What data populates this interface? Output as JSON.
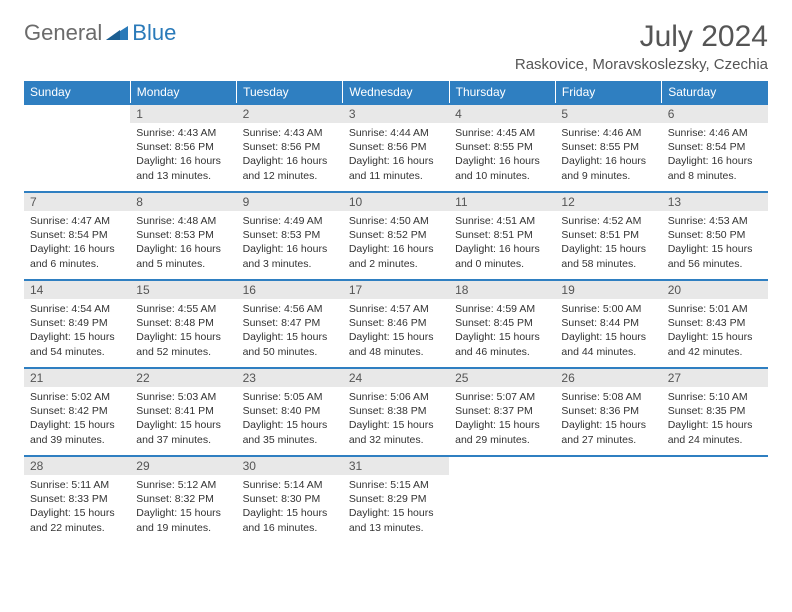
{
  "logo": {
    "word1": "General",
    "word2": "Blue"
  },
  "title": "July 2024",
  "location": "Raskovice, Moravskoslezsky, Czechia",
  "colors": {
    "header_bg": "#2f7fc1",
    "header_text": "#ffffff",
    "daynum_bg": "#e8e8e8",
    "rule": "#2f7fc1",
    "logo_gray": "#6b6b6b",
    "logo_blue": "#2a7ab9",
    "text": "#333333"
  },
  "typography": {
    "title_fontsize": 30,
    "location_fontsize": 15,
    "dayhead_fontsize": 12,
    "cell_fontsize": 10.5
  },
  "day_headers": [
    "Sunday",
    "Monday",
    "Tuesday",
    "Wednesday",
    "Thursday",
    "Friday",
    "Saturday"
  ],
  "weeks": [
    [
      {
        "n": "",
        "sunrise": "",
        "sunset": "",
        "daylight": ""
      },
      {
        "n": "1",
        "sunrise": "Sunrise: 4:43 AM",
        "sunset": "Sunset: 8:56 PM",
        "daylight": "Daylight: 16 hours and 13 minutes."
      },
      {
        "n": "2",
        "sunrise": "Sunrise: 4:43 AM",
        "sunset": "Sunset: 8:56 PM",
        "daylight": "Daylight: 16 hours and 12 minutes."
      },
      {
        "n": "3",
        "sunrise": "Sunrise: 4:44 AM",
        "sunset": "Sunset: 8:56 PM",
        "daylight": "Daylight: 16 hours and 11 minutes."
      },
      {
        "n": "4",
        "sunrise": "Sunrise: 4:45 AM",
        "sunset": "Sunset: 8:55 PM",
        "daylight": "Daylight: 16 hours and 10 minutes."
      },
      {
        "n": "5",
        "sunrise": "Sunrise: 4:46 AM",
        "sunset": "Sunset: 8:55 PM",
        "daylight": "Daylight: 16 hours and 9 minutes."
      },
      {
        "n": "6",
        "sunrise": "Sunrise: 4:46 AM",
        "sunset": "Sunset: 8:54 PM",
        "daylight": "Daylight: 16 hours and 8 minutes."
      }
    ],
    [
      {
        "n": "7",
        "sunrise": "Sunrise: 4:47 AM",
        "sunset": "Sunset: 8:54 PM",
        "daylight": "Daylight: 16 hours and 6 minutes."
      },
      {
        "n": "8",
        "sunrise": "Sunrise: 4:48 AM",
        "sunset": "Sunset: 8:53 PM",
        "daylight": "Daylight: 16 hours and 5 minutes."
      },
      {
        "n": "9",
        "sunrise": "Sunrise: 4:49 AM",
        "sunset": "Sunset: 8:53 PM",
        "daylight": "Daylight: 16 hours and 3 minutes."
      },
      {
        "n": "10",
        "sunrise": "Sunrise: 4:50 AM",
        "sunset": "Sunset: 8:52 PM",
        "daylight": "Daylight: 16 hours and 2 minutes."
      },
      {
        "n": "11",
        "sunrise": "Sunrise: 4:51 AM",
        "sunset": "Sunset: 8:51 PM",
        "daylight": "Daylight: 16 hours and 0 minutes."
      },
      {
        "n": "12",
        "sunrise": "Sunrise: 4:52 AM",
        "sunset": "Sunset: 8:51 PM",
        "daylight": "Daylight: 15 hours and 58 minutes."
      },
      {
        "n": "13",
        "sunrise": "Sunrise: 4:53 AM",
        "sunset": "Sunset: 8:50 PM",
        "daylight": "Daylight: 15 hours and 56 minutes."
      }
    ],
    [
      {
        "n": "14",
        "sunrise": "Sunrise: 4:54 AM",
        "sunset": "Sunset: 8:49 PM",
        "daylight": "Daylight: 15 hours and 54 minutes."
      },
      {
        "n": "15",
        "sunrise": "Sunrise: 4:55 AM",
        "sunset": "Sunset: 8:48 PM",
        "daylight": "Daylight: 15 hours and 52 minutes."
      },
      {
        "n": "16",
        "sunrise": "Sunrise: 4:56 AM",
        "sunset": "Sunset: 8:47 PM",
        "daylight": "Daylight: 15 hours and 50 minutes."
      },
      {
        "n": "17",
        "sunrise": "Sunrise: 4:57 AM",
        "sunset": "Sunset: 8:46 PM",
        "daylight": "Daylight: 15 hours and 48 minutes."
      },
      {
        "n": "18",
        "sunrise": "Sunrise: 4:59 AM",
        "sunset": "Sunset: 8:45 PM",
        "daylight": "Daylight: 15 hours and 46 minutes."
      },
      {
        "n": "19",
        "sunrise": "Sunrise: 5:00 AM",
        "sunset": "Sunset: 8:44 PM",
        "daylight": "Daylight: 15 hours and 44 minutes."
      },
      {
        "n": "20",
        "sunrise": "Sunrise: 5:01 AM",
        "sunset": "Sunset: 8:43 PM",
        "daylight": "Daylight: 15 hours and 42 minutes."
      }
    ],
    [
      {
        "n": "21",
        "sunrise": "Sunrise: 5:02 AM",
        "sunset": "Sunset: 8:42 PM",
        "daylight": "Daylight: 15 hours and 39 minutes."
      },
      {
        "n": "22",
        "sunrise": "Sunrise: 5:03 AM",
        "sunset": "Sunset: 8:41 PM",
        "daylight": "Daylight: 15 hours and 37 minutes."
      },
      {
        "n": "23",
        "sunrise": "Sunrise: 5:05 AM",
        "sunset": "Sunset: 8:40 PM",
        "daylight": "Daylight: 15 hours and 35 minutes."
      },
      {
        "n": "24",
        "sunrise": "Sunrise: 5:06 AM",
        "sunset": "Sunset: 8:38 PM",
        "daylight": "Daylight: 15 hours and 32 minutes."
      },
      {
        "n": "25",
        "sunrise": "Sunrise: 5:07 AM",
        "sunset": "Sunset: 8:37 PM",
        "daylight": "Daylight: 15 hours and 29 minutes."
      },
      {
        "n": "26",
        "sunrise": "Sunrise: 5:08 AM",
        "sunset": "Sunset: 8:36 PM",
        "daylight": "Daylight: 15 hours and 27 minutes."
      },
      {
        "n": "27",
        "sunrise": "Sunrise: 5:10 AM",
        "sunset": "Sunset: 8:35 PM",
        "daylight": "Daylight: 15 hours and 24 minutes."
      }
    ],
    [
      {
        "n": "28",
        "sunrise": "Sunrise: 5:11 AM",
        "sunset": "Sunset: 8:33 PM",
        "daylight": "Daylight: 15 hours and 22 minutes."
      },
      {
        "n": "29",
        "sunrise": "Sunrise: 5:12 AM",
        "sunset": "Sunset: 8:32 PM",
        "daylight": "Daylight: 15 hours and 19 minutes."
      },
      {
        "n": "30",
        "sunrise": "Sunrise: 5:14 AM",
        "sunset": "Sunset: 8:30 PM",
        "daylight": "Daylight: 15 hours and 16 minutes."
      },
      {
        "n": "31",
        "sunrise": "Sunrise: 5:15 AM",
        "sunset": "Sunset: 8:29 PM",
        "daylight": "Daylight: 15 hours and 13 minutes."
      },
      {
        "n": "",
        "sunrise": "",
        "sunset": "",
        "daylight": ""
      },
      {
        "n": "",
        "sunrise": "",
        "sunset": "",
        "daylight": ""
      },
      {
        "n": "",
        "sunrise": "",
        "sunset": "",
        "daylight": ""
      }
    ]
  ]
}
